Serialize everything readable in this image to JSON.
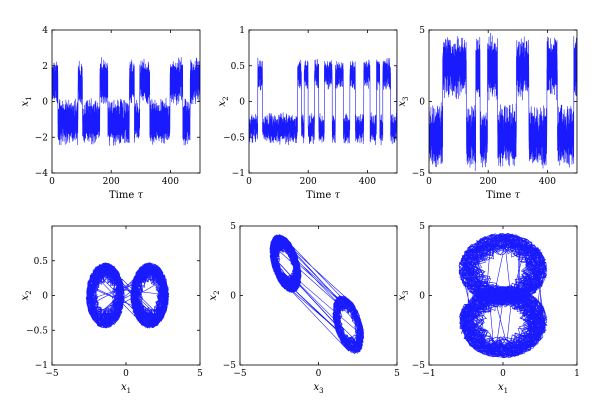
{
  "colors": {
    "series": "#1a1aff"
  },
  "chart_data": [
    {
      "id": "x1_time",
      "type": "line",
      "pattern": "timeseries",
      "series": [
        {
          "name": "",
          "values": []
        }
      ],
      "xlabel": "Time τ",
      "ylabel": "x1",
      "xlim": [
        0,
        500
      ],
      "ylim": [
        -4,
        4
      ],
      "xticks": [
        0,
        200,
        400
      ],
      "yticks": [
        -4,
        -2,
        0,
        2,
        4
      ],
      "grid": false,
      "signal": {
        "amplitude": 2.0,
        "spread": 1.2,
        "burst_cycles": 22
      }
    },
    {
      "id": "x2_time",
      "type": "line",
      "pattern": "timeseries",
      "series": [
        {
          "name": "",
          "values": []
        }
      ],
      "xlabel": "Time τ",
      "ylabel": "x2",
      "xlim": [
        0,
        500
      ],
      "ylim": [
        -1,
        1
      ],
      "xticks": [
        0,
        200,
        400
      ],
      "yticks": [
        -1,
        -0.5,
        0,
        0.5,
        1
      ],
      "grid": false,
      "signal": {
        "amplitude": 0.55,
        "spread": 0.15,
        "burst_cycles": 34
      }
    },
    {
      "id": "x3_time",
      "type": "line",
      "pattern": "timeseries",
      "series": [
        {
          "name": "",
          "values": []
        }
      ],
      "xlabel": "Time τ",
      "ylabel": "x3",
      "xlim": [
        0,
        500
      ],
      "ylim": [
        -5,
        5
      ],
      "xticks": [
        0,
        200,
        400
      ],
      "yticks": [
        -5,
        0,
        5
      ],
      "grid": false,
      "signal": {
        "amplitude": 4.0,
        "spread": 2.0,
        "burst_cycles": 22
      }
    },
    {
      "id": "x1_x2_phase",
      "type": "line",
      "pattern": "phase-butterfly",
      "series": [
        {
          "name": "",
          "values": []
        }
      ],
      "xlabel": "x1",
      "ylabel": "x2",
      "xlim": [
        -5,
        5
      ],
      "ylim": [
        -1,
        1
      ],
      "xticks": [
        -5,
        0,
        5
      ],
      "yticks": [
        -1,
        -0.5,
        0,
        0.5
      ],
      "grid": false,
      "attractor": {
        "centers_x": [
          -1.4,
          1.6
        ],
        "center_y": 0.0,
        "rx": 1.3,
        "ry": 0.5
      }
    },
    {
      "id": "x3_x2_phase",
      "type": "line",
      "pattern": "phase-diagonal",
      "series": [
        {
          "name": "",
          "values": []
        }
      ],
      "xlabel": "x3",
      "ylabel": "x2",
      "xlim": [
        -5,
        5
      ],
      "ylim": [
        -5,
        5
      ],
      "xticks": [
        -5,
        0,
        5
      ],
      "yticks": [
        -5,
        0,
        5
      ],
      "grid": false,
      "attractor": {
        "centers": [
          [
            -2.1,
            2.3
          ],
          [
            1.9,
            -2.1
          ]
        ],
        "rx": 1.0,
        "ry": 1.9
      }
    },
    {
      "id": "x1_x3_phase",
      "type": "line",
      "pattern": "phase-stacked",
      "series": [
        {
          "name": "",
          "values": []
        }
      ],
      "xlabel": "x1",
      "ylabel": "x3",
      "xlim": [
        -1,
        1
      ],
      "ylim": [
        -5,
        5
      ],
      "xticks": [
        -1,
        0,
        1
      ],
      "yticks": [
        -5,
        0,
        5
      ],
      "grid": false,
      "attractor": {
        "centers": [
          [
            0.0,
            1.9
          ],
          [
            0.0,
            -1.9
          ]
        ],
        "rx": 0.6,
        "ry": 2.6
      }
    }
  ]
}
